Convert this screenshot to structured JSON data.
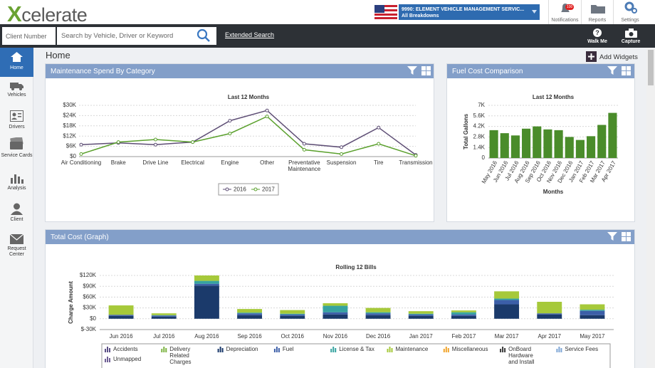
{
  "header": {
    "logo": "Xcelerate",
    "account": "9990: ELEMENT VEHICLE MANAGEMENT SERVIC...",
    "breakdown": "All Breakdowns",
    "notification_count": "100",
    "tools": [
      "Notifications",
      "Reports",
      "Settings"
    ]
  },
  "search_bar": {
    "client_placeholder": "Client Number",
    "search_placeholder": "Search by Vehicle, Driver or Keyword",
    "extended_search": "Extended Search",
    "actions": [
      "Walk Me",
      "Capture"
    ]
  },
  "sidebar": [
    "Home",
    "Vehicles",
    "Drivers",
    "Service Cards",
    "Analysis",
    "Client",
    "Request Center"
  ],
  "page": {
    "title": "Home",
    "add_widgets": "Add Widgets"
  },
  "widgets": [
    "Maintenance Spend By Category",
    "Fuel Cost Comparison",
    "Total Cost (Graph)"
  ],
  "chart_data": [
    {
      "type": "line",
      "title": "Last 12 Months",
      "categories": [
        "Air Conditioning",
        "Brake",
        "Drive Line",
        "Electrical",
        "Engine",
        "Other",
        "Preventative Maintenance",
        "Suspension",
        "Tire",
        "Transmission"
      ],
      "series": [
        {
          "name": "2016",
          "color": "#5e4e75",
          "values": [
            7000,
            8000,
            7000,
            8500,
            21000,
            27000,
            7500,
            5500,
            17000,
            1000
          ]
        },
        {
          "name": "2017",
          "color": "#5aa02c",
          "values": [
            1500,
            8500,
            10000,
            8500,
            13500,
            23500,
            4000,
            1500,
            7500,
            500
          ]
        }
      ],
      "ylim": [
        0,
        30000
      ],
      "yticks": [
        {
          "value": 0,
          "label": "$0"
        },
        {
          "value": 6000,
          "label": "$6K"
        },
        {
          "value": 12000,
          "label": "$12K"
        },
        {
          "value": 18000,
          "label": "$18K"
        },
        {
          "value": 24000,
          "label": "$24K"
        },
        {
          "value": 30000,
          "label": "$30K"
        }
      ],
      "grid": true,
      "legend": "bottom"
    },
    {
      "type": "bar",
      "title": "Last 12 Months",
      "x_label": "Months",
      "y_label": "Total Gallons",
      "categories": [
        "May 2016",
        "Jun 2016",
        "Jul 2016",
        "Aug 2016",
        "Sep 2016",
        "Oct 2016",
        "Nov 2016",
        "Dec 2016",
        "Jan 2017",
        "Feb 2017",
        "Mar 2017",
        "Apr 2017"
      ],
      "values": [
        3700,
        3300,
        3000,
        3900,
        4200,
        3800,
        3700,
        2800,
        2400,
        2900,
        4400,
        6000
      ],
      "color": "#4a8c2a",
      "ylim": [
        0,
        7000
      ],
      "yticks": [
        0,
        {
          "value": 1400,
          "label": "1.4K"
        },
        {
          "value": 2800,
          "label": "2.8K"
        },
        {
          "value": 4200,
          "label": "4.2K"
        },
        {
          "value": 5600,
          "label": "5.6K"
        },
        {
          "value": 7000,
          "label": "7K"
        }
      ],
      "grid": true
    },
    {
      "type": "bar",
      "stacked": true,
      "title": "Rolling 12 Bills",
      "y_label": "Charge Amount",
      "categories": [
        "Jun 2016",
        "Jul 2016",
        "Aug 2016",
        "Sep 2016",
        "Oct 2016",
        "Nov 2016",
        "Dec 2016",
        "Jan 2017",
        "Feb 2017",
        "Mar 2017",
        "Apr 2017",
        "May 2017"
      ],
      "series": [
        {
          "name": "Accidents",
          "color": "#5b4f86",
          "values": [
            0,
            0,
            0,
            0,
            0,
            0,
            0,
            0,
            0,
            0,
            0,
            0
          ]
        },
        {
          "name": "Delivery Related Charges",
          "color": "#7cb342",
          "values": [
            0,
            0,
            0,
            0,
            0,
            0,
            0,
            0,
            0,
            0,
            0,
            0
          ]
        },
        {
          "name": "Depreciation",
          "color": "#1b3a6b",
          "values": [
            8000,
            6000,
            92000,
            10000,
            8000,
            12000,
            10000,
            8000,
            8000,
            40000,
            12000,
            10000
          ]
        },
        {
          "name": "Fuel",
          "color": "#3c5fa8",
          "values": [
            3000,
            3000,
            5000,
            5000,
            4000,
            6000,
            5000,
            4000,
            4000,
            12000,
            3000,
            12000
          ]
        },
        {
          "name": "License & Tax",
          "color": "#36a3a0",
          "values": [
            0,
            1000,
            8000,
            2000,
            2000,
            18000,
            3000,
            2000,
            6000,
            4000,
            0,
            3000
          ]
        },
        {
          "name": "Maintenance",
          "color": "#a6c93a",
          "values": [
            26000,
            5000,
            15000,
            10000,
            10000,
            7000,
            12000,
            7000,
            5000,
            20000,
            32000,
            15000
          ]
        },
        {
          "name": "Miscellaneous",
          "color": "#f2a52c",
          "values": [
            0,
            0,
            0,
            0,
            0,
            0,
            0,
            0,
            0,
            0,
            0,
            0
          ]
        },
        {
          "name": "OnBoard Hardware and Install",
          "color": "#3a3a3a",
          "values": [
            0,
            0,
            0,
            0,
            0,
            0,
            0,
            0,
            0,
            0,
            0,
            0
          ]
        },
        {
          "name": "Service Fees",
          "color": "#7ea6d6",
          "values": [
            0,
            0,
            0,
            0,
            0,
            0,
            0,
            0,
            0,
            0,
            0,
            0
          ]
        },
        {
          "name": "Unmapped",
          "color": "#6f5f95",
          "values": [
            0,
            0,
            0,
            0,
            0,
            0,
            0,
            0,
            0,
            0,
            0,
            0
          ]
        }
      ],
      "ylim": [
        -30000,
        120000
      ],
      "yticks": [
        {
          "value": -30000,
          "label": "$-30K"
        },
        {
          "value": 0,
          "label": "$0"
        },
        {
          "value": 30000,
          "label": "$30K"
        },
        {
          "value": 60000,
          "label": "$60K"
        },
        {
          "value": 90000,
          "label": "$90K"
        },
        {
          "value": 120000,
          "label": "$120K"
        }
      ],
      "grid": true
    }
  ]
}
